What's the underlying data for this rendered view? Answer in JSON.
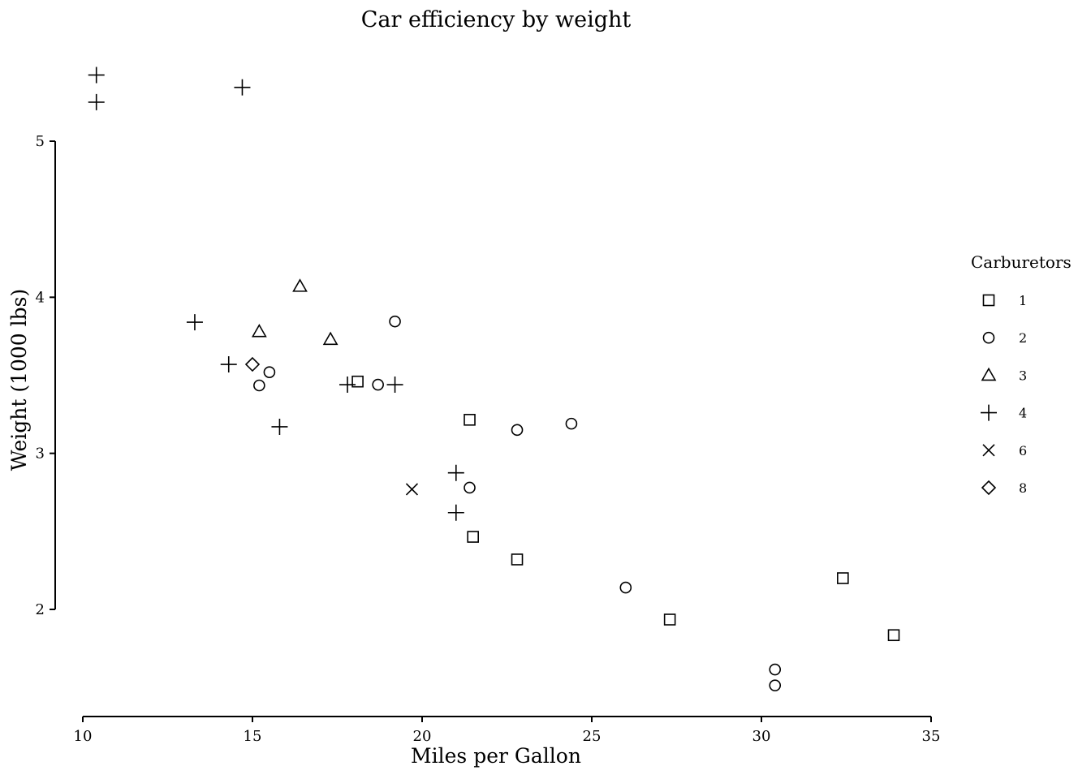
{
  "chart_data": {
    "type": "scatter",
    "title": "Car efficiency by weight",
    "xlabel": "Miles per Gallon",
    "ylabel": "Weight (1000 lbs)",
    "xlim": [
      10,
      35
    ],
    "ylim": [
      1.35,
      5.5
    ],
    "xticks": [
      10,
      15,
      20,
      25,
      30,
      35
    ],
    "yticks": [
      2,
      3,
      4,
      5
    ],
    "grid": false,
    "legend": {
      "title": "Carburetors",
      "placement": "right",
      "entries": [
        {
          "label": "1",
          "shape": "square"
        },
        {
          "label": "2",
          "shape": "circle"
        },
        {
          "label": "3",
          "shape": "triangle"
        },
        {
          "label": "4",
          "shape": "plus"
        },
        {
          "label": "6",
          "shape": "cross"
        },
        {
          "label": "8",
          "shape": "diamond"
        }
      ]
    },
    "colors": {
      "marks": "#000000",
      "background": "#ffffff"
    },
    "points": [
      {
        "x": 21.0,
        "y": 2.62,
        "carb": "4"
      },
      {
        "x": 21.0,
        "y": 2.875,
        "carb": "4"
      },
      {
        "x": 22.8,
        "y": 2.32,
        "carb": "1"
      },
      {
        "x": 21.4,
        "y": 3.215,
        "carb": "1"
      },
      {
        "x": 18.7,
        "y": 3.44,
        "carb": "2"
      },
      {
        "x": 18.1,
        "y": 3.46,
        "carb": "1"
      },
      {
        "x": 14.3,
        "y": 3.57,
        "carb": "4"
      },
      {
        "x": 24.4,
        "y": 3.19,
        "carb": "2"
      },
      {
        "x": 22.8,
        "y": 3.15,
        "carb": "2"
      },
      {
        "x": 19.2,
        "y": 3.44,
        "carb": "4"
      },
      {
        "x": 17.8,
        "y": 3.44,
        "carb": "4"
      },
      {
        "x": 16.4,
        "y": 4.07,
        "carb": "3"
      },
      {
        "x": 17.3,
        "y": 3.73,
        "carb": "3"
      },
      {
        "x": 15.2,
        "y": 3.78,
        "carb": "3"
      },
      {
        "x": 10.4,
        "y": 5.25,
        "carb": "4"
      },
      {
        "x": 10.4,
        "y": 5.424,
        "carb": "4"
      },
      {
        "x": 14.7,
        "y": 5.345,
        "carb": "4"
      },
      {
        "x": 32.4,
        "y": 2.2,
        "carb": "1"
      },
      {
        "x": 30.4,
        "y": 1.615,
        "carb": "2"
      },
      {
        "x": 33.9,
        "y": 1.835,
        "carb": "1"
      },
      {
        "x": 21.5,
        "y": 2.465,
        "carb": "1"
      },
      {
        "x": 15.5,
        "y": 3.52,
        "carb": "2"
      },
      {
        "x": 15.2,
        "y": 3.435,
        "carb": "2"
      },
      {
        "x": 13.3,
        "y": 3.84,
        "carb": "4"
      },
      {
        "x": 19.2,
        "y": 3.845,
        "carb": "2"
      },
      {
        "x": 27.3,
        "y": 1.935,
        "carb": "1"
      },
      {
        "x": 26.0,
        "y": 2.14,
        "carb": "2"
      },
      {
        "x": 30.4,
        "y": 1.513,
        "carb": "2"
      },
      {
        "x": 15.8,
        "y": 3.17,
        "carb": "4"
      },
      {
        "x": 19.7,
        "y": 2.77,
        "carb": "6"
      },
      {
        "x": 15.0,
        "y": 3.57,
        "carb": "8"
      },
      {
        "x": 21.4,
        "y": 2.78,
        "carb": "2"
      }
    ]
  }
}
